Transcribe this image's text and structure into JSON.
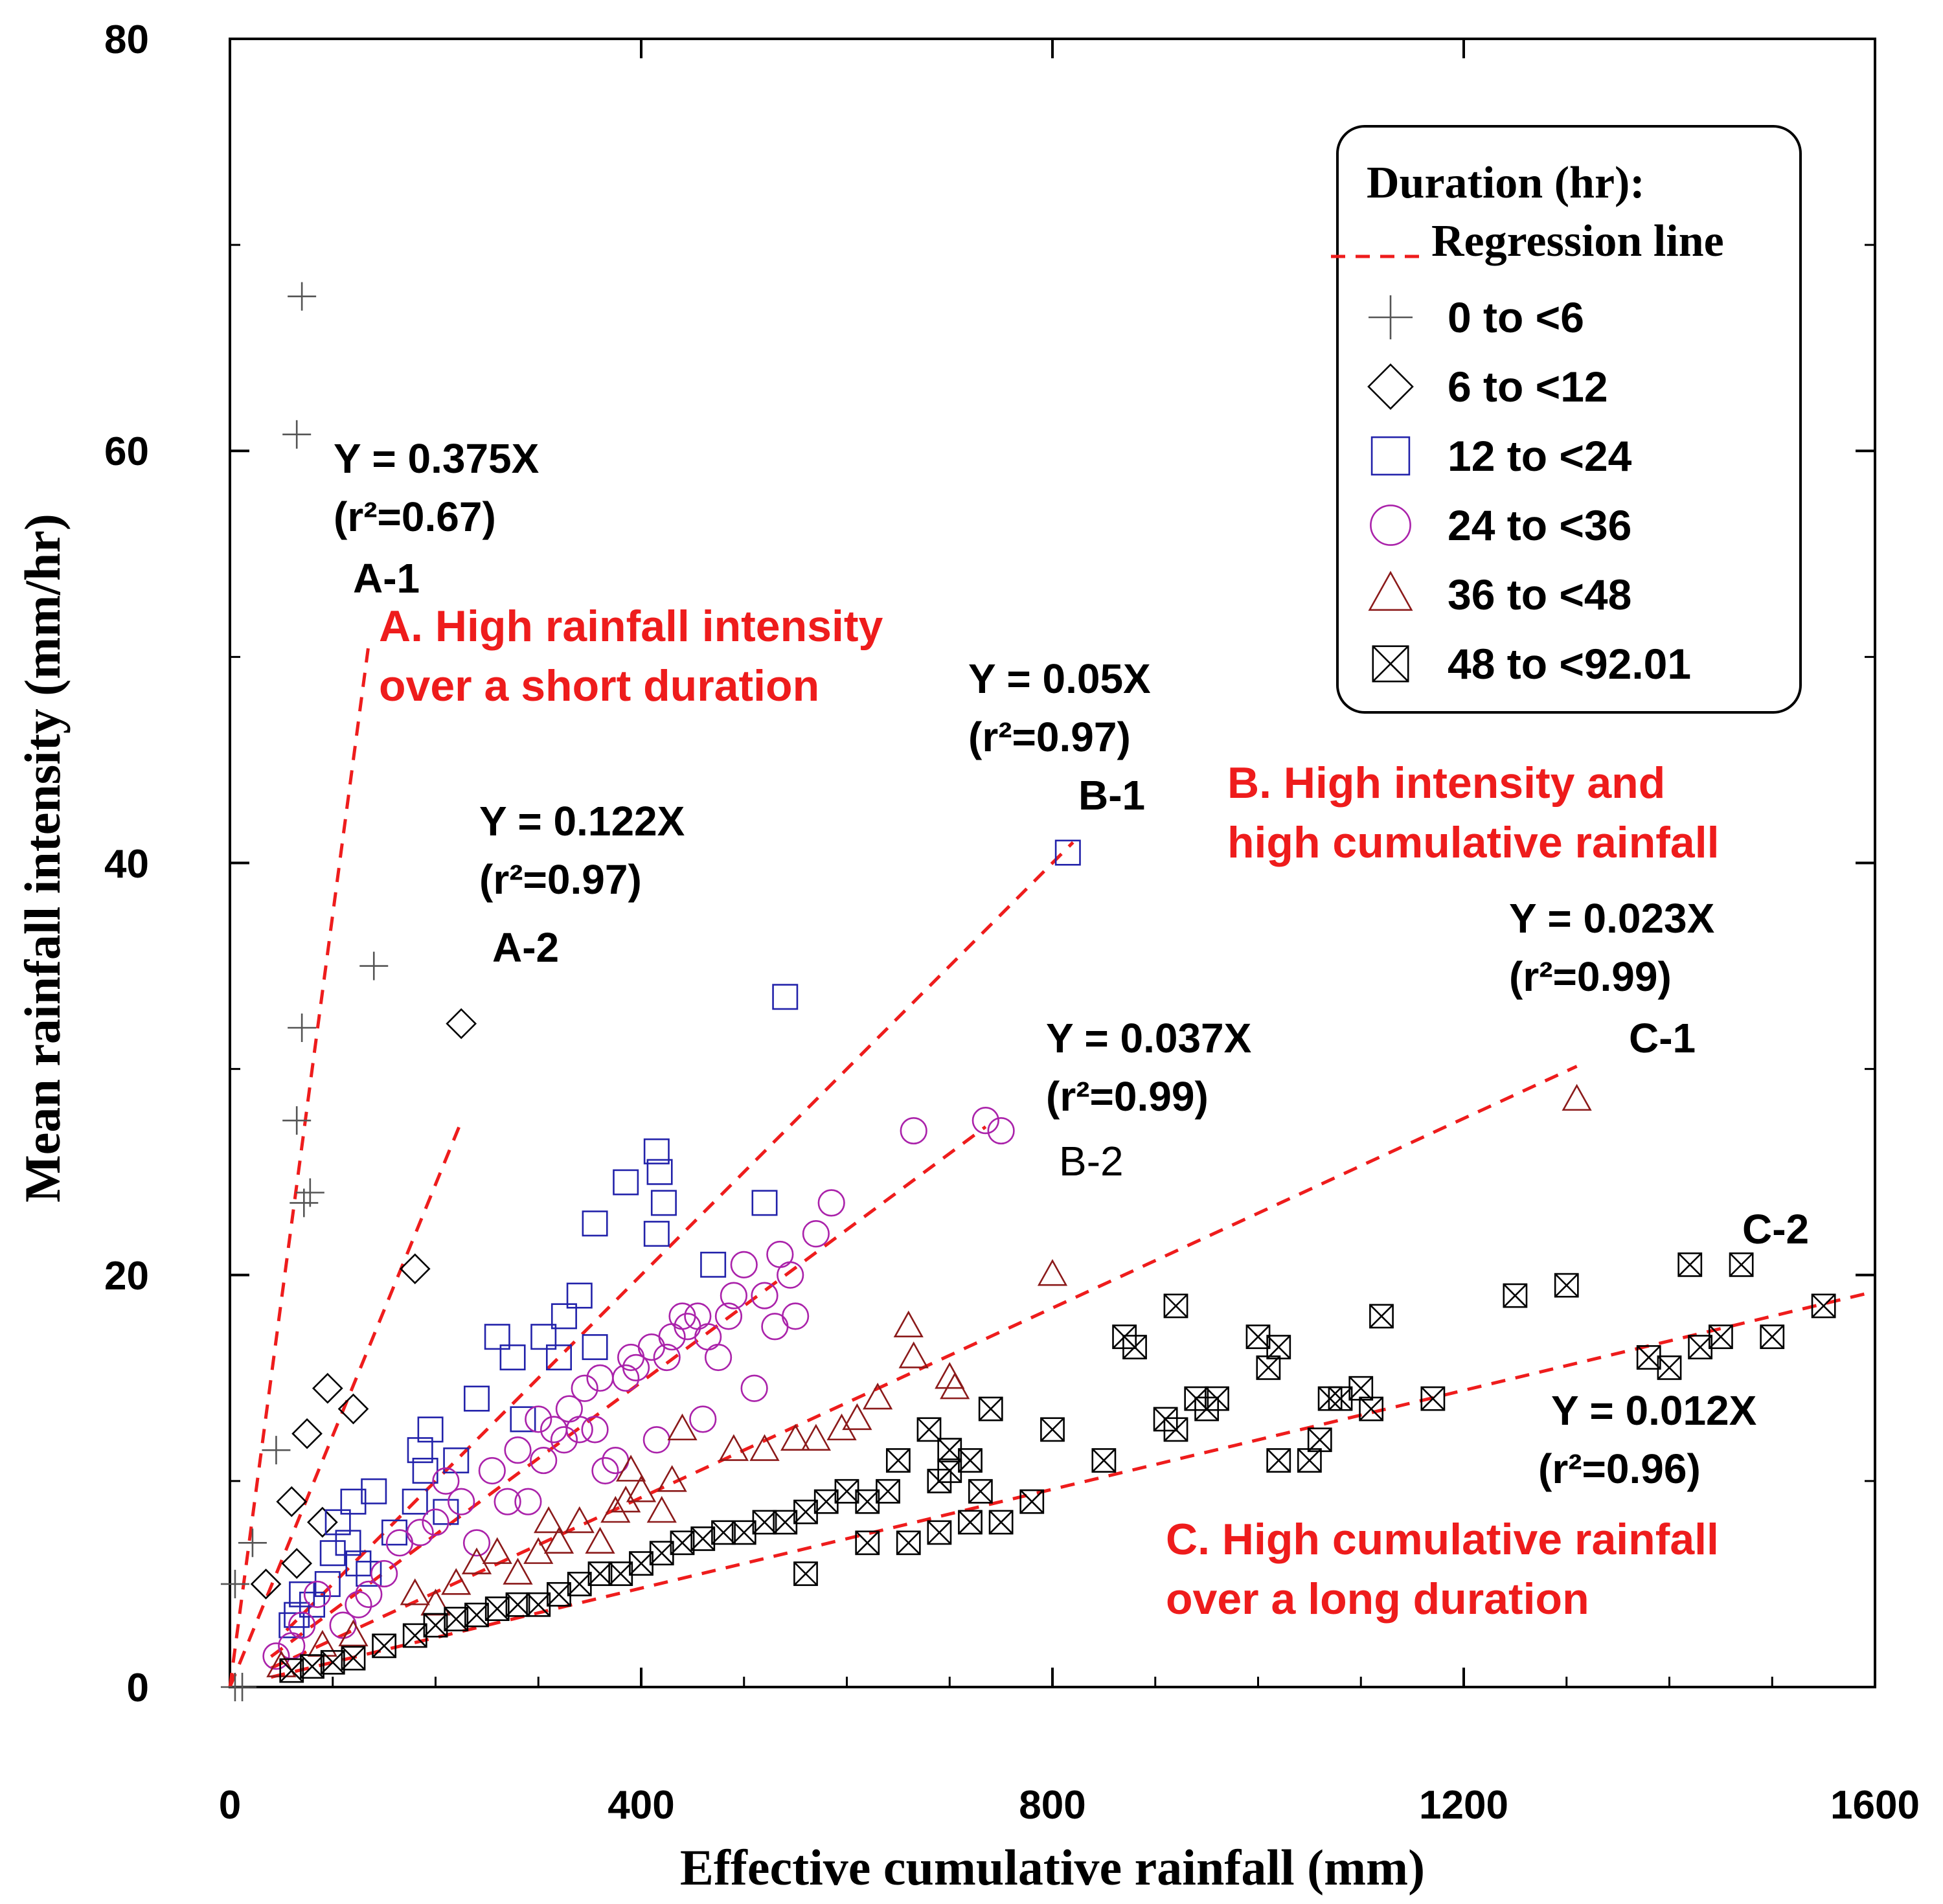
{
  "chart_data": {
    "type": "scatter",
    "xlabel": "Effective cumulative rainfall (mm)",
    "ylabel": "Mean rainfall intensity (mm/hr)",
    "xlim": [
      0,
      1600
    ],
    "ylim": [
      0,
      80
    ],
    "xticks": [
      0,
      400,
      800,
      1200,
      1600
    ],
    "yticks": [
      0,
      20,
      40,
      60,
      80
    ],
    "xtick_labels": [
      "0",
      "400",
      "800",
      "1200",
      "1600"
    ],
    "ytick_labels": [
      "0",
      "20",
      "40",
      "60",
      "80"
    ],
    "grid": false,
    "legend": {
      "placement": "top-right",
      "title": "Duration (hr):",
      "regression_label": "Regression line",
      "entries": [
        "0 to <6",
        "6 to <12",
        "12 to <24",
        "24 to <36",
        "36 to <48",
        "48 to <92.01"
      ]
    },
    "series": [
      {
        "name": "0 to <6",
        "marker": "plus",
        "color": "#555555",
        "points": [
          [
            5,
            0
          ],
          [
            12,
            0
          ],
          [
            5,
            5
          ],
          [
            22,
            7
          ],
          [
            45,
            11.5
          ],
          [
            65,
            60.8
          ],
          [
            70,
            67.5
          ],
          [
            65,
            27.5
          ],
          [
            70,
            32
          ],
          [
            72,
            23.5
          ],
          [
            78,
            24
          ],
          [
            140,
            35
          ]
        ]
      },
      {
        "name": "6 to <12",
        "marker": "diamond",
        "color": "#000000",
        "points": [
          [
            35,
            5
          ],
          [
            65,
            6
          ],
          [
            60,
            9
          ],
          [
            75,
            12.3
          ],
          [
            90,
            8
          ],
          [
            95,
            14.5
          ],
          [
            120,
            13.5
          ],
          [
            180,
            20.3
          ],
          [
            225,
            32.2
          ]
        ]
      },
      {
        "name": "12 to <24",
        "marker": "square",
        "color": "#2222aa",
        "points": [
          [
            60,
            3
          ],
          [
            65,
            3.5
          ],
          [
            70,
            4.5
          ],
          [
            80,
            4
          ],
          [
            95,
            5
          ],
          [
            100,
            6.5
          ],
          [
            105,
            8
          ],
          [
            115,
            7
          ],
          [
            120,
            9
          ],
          [
            125,
            6
          ],
          [
            135,
            5.5
          ],
          [
            140,
            9.5
          ],
          [
            160,
            7.5
          ],
          [
            180,
            9
          ],
          [
            185,
            11.5
          ],
          [
            195,
            12.5
          ],
          [
            190,
            10.5
          ],
          [
            210,
            8.5
          ],
          [
            220,
            11
          ],
          [
            240,
            14
          ],
          [
            260,
            17
          ],
          [
            275,
            16
          ],
          [
            285,
            13
          ],
          [
            305,
            17
          ],
          [
            320,
            16
          ],
          [
            325,
            18
          ],
          [
            340,
            19
          ],
          [
            355,
            22.5
          ],
          [
            355,
            16.5
          ],
          [
            385,
            24.5
          ],
          [
            415,
            26
          ],
          [
            418,
            25
          ],
          [
            422,
            23.5
          ],
          [
            415,
            22
          ],
          [
            470,
            20.5
          ],
          [
            520,
            23.5
          ],
          [
            540,
            33.5
          ],
          [
            815,
            40.5
          ]
        ]
      },
      {
        "name": "24 to <36",
        "marker": "circle",
        "color": "#aa22aa",
        "points": [
          [
            45,
            1.5
          ],
          [
            60,
            2
          ],
          [
            70,
            3
          ],
          [
            85,
            4.5
          ],
          [
            110,
            3
          ],
          [
            125,
            4
          ],
          [
            135,
            4.5
          ],
          [
            150,
            5.5
          ],
          [
            165,
            7
          ],
          [
            185,
            7.5
          ],
          [
            200,
            8
          ],
          [
            210,
            10
          ],
          [
            225,
            9
          ],
          [
            240,
            7
          ],
          [
            255,
            10.5
          ],
          [
            270,
            9
          ],
          [
            280,
            11.5
          ],
          [
            290,
            9
          ],
          [
            300,
            13
          ],
          [
            305,
            11
          ],
          [
            315,
            12.5
          ],
          [
            325,
            12
          ],
          [
            330,
            13.5
          ],
          [
            340,
            12.5
          ],
          [
            345,
            14.5
          ],
          [
            355,
            12.5
          ],
          [
            360,
            15
          ],
          [
            365,
            10.5
          ],
          [
            375,
            11
          ],
          [
            385,
            15
          ],
          [
            390,
            16
          ],
          [
            395,
            15.5
          ],
          [
            410,
            16.5
          ],
          [
            415,
            12
          ],
          [
            425,
            16
          ],
          [
            430,
            17
          ],
          [
            440,
            18
          ],
          [
            445,
            17.5
          ],
          [
            455,
            18
          ],
          [
            460,
            13
          ],
          [
            465,
            17
          ],
          [
            475,
            16
          ],
          [
            485,
            18
          ],
          [
            490,
            19
          ],
          [
            500,
            20.5
          ],
          [
            510,
            14.5
          ],
          [
            520,
            19
          ],
          [
            530,
            17.5
          ],
          [
            535,
            21
          ],
          [
            545,
            20
          ],
          [
            550,
            18
          ],
          [
            570,
            22
          ],
          [
            585,
            23.5
          ],
          [
            665,
            27
          ],
          [
            735,
            27.5
          ],
          [
            750,
            27
          ]
        ]
      },
      {
        "name": "36 to <48",
        "marker": "triangle",
        "color": "#8b1a1a",
        "points": [
          [
            50,
            1
          ],
          [
            90,
            2
          ],
          [
            120,
            2.5
          ],
          [
            180,
            4.5
          ],
          [
            200,
            4
          ],
          [
            220,
            5
          ],
          [
            240,
            6
          ],
          [
            260,
            6.5
          ],
          [
            280,
            5.5
          ],
          [
            300,
            6.5
          ],
          [
            310,
            8
          ],
          [
            320,
            7
          ],
          [
            340,
            8
          ],
          [
            360,
            7
          ],
          [
            375,
            8.5
          ],
          [
            385,
            9
          ],
          [
            390,
            10.5
          ],
          [
            400,
            9.5
          ],
          [
            420,
            8.5
          ],
          [
            430,
            10
          ],
          [
            440,
            12.5
          ],
          [
            490,
            11.5
          ],
          [
            520,
            11.5
          ],
          [
            550,
            12
          ],
          [
            570,
            12
          ],
          [
            595,
            12.5
          ],
          [
            610,
            13
          ],
          [
            630,
            14
          ],
          [
            660,
            17.5
          ],
          [
            665,
            16
          ],
          [
            700,
            15
          ],
          [
            705,
            14.5
          ],
          [
            800,
            20
          ],
          [
            1310,
            28.5
          ]
        ]
      },
      {
        "name": "48 to <92.01",
        "marker": "boxx",
        "color": "#000000",
        "points": [
          [
            60,
            0.8
          ],
          [
            80,
            1
          ],
          [
            100,
            1.2
          ],
          [
            120,
            1.4
          ],
          [
            150,
            2
          ],
          [
            180,
            2.5
          ],
          [
            200,
            3
          ],
          [
            220,
            3.3
          ],
          [
            240,
            3.5
          ],
          [
            260,
            3.8
          ],
          [
            280,
            4
          ],
          [
            300,
            4
          ],
          [
            320,
            4.5
          ],
          [
            340,
            5
          ],
          [
            360,
            5.5
          ],
          [
            380,
            5.5
          ],
          [
            400,
            6
          ],
          [
            420,
            6.5
          ],
          [
            440,
            7
          ],
          [
            460,
            7.2
          ],
          [
            480,
            7.5
          ],
          [
            500,
            7.5
          ],
          [
            520,
            8
          ],
          [
            540,
            8
          ],
          [
            560,
            8.5
          ],
          [
            580,
            9
          ],
          [
            600,
            9.5
          ],
          [
            620,
            9
          ],
          [
            640,
            9.5
          ],
          [
            560,
            5.5
          ],
          [
            620,
            7
          ],
          [
            660,
            7
          ],
          [
            690,
            7.5
          ],
          [
            720,
            8
          ],
          [
            750,
            8
          ],
          [
            780,
            9
          ],
          [
            650,
            11
          ],
          [
            680,
            12.5
          ],
          [
            700,
            11.5
          ],
          [
            720,
            11
          ],
          [
            740,
            13.5
          ],
          [
            690,
            10
          ],
          [
            700,
            10.5
          ],
          [
            730,
            9.5
          ],
          [
            800,
            12.5
          ],
          [
            850,
            11
          ],
          [
            870,
            17
          ],
          [
            880,
            16.5
          ],
          [
            920,
            18.5
          ],
          [
            910,
            13
          ],
          [
            920,
            12.5
          ],
          [
            940,
            14
          ],
          [
            950,
            13.5
          ],
          [
            960,
            14
          ],
          [
            1000,
            17
          ],
          [
            1010,
            15.5
          ],
          [
            1020,
            16.5
          ],
          [
            1050,
            11
          ],
          [
            1060,
            12
          ],
          [
            1070,
            14
          ],
          [
            1110,
            13.5
          ],
          [
            1120,
            18
          ],
          [
            1170,
            14
          ],
          [
            1250,
            19
          ],
          [
            1300,
            19.5
          ],
          [
            1380,
            16
          ],
          [
            1400,
            15.5
          ],
          [
            1420,
            20.5
          ],
          [
            1430,
            16.5
          ],
          [
            1450,
            17
          ],
          [
            1470,
            20.5
          ],
          [
            1500,
            17
          ],
          [
            1550,
            18.5
          ],
          [
            1020,
            11
          ],
          [
            1080,
            14
          ],
          [
            1100,
            14.5
          ]
        ]
      }
    ],
    "regression_lines": [
      {
        "label": "A-1",
        "equation": "Y = 0.375X",
        "r2": "(r²=0.67)",
        "x_range": [
          0,
          135
        ]
      },
      {
        "label": "A-2",
        "equation": "Y = 0.122X",
        "r2": "(r²=0.97)",
        "x_range": [
          0,
          225
        ]
      },
      {
        "label": "B-1",
        "equation": "Y = 0.05X",
        "r2": "(r²=0.97)",
        "x_range": [
          55,
          820
        ]
      },
      {
        "label": "B-2",
        "equation": "Y = 0.037X",
        "r2": "(r²=0.99)",
        "x_range": [
          40,
          735
        ]
      },
      {
        "label": "C-1",
        "equation": "Y = 0.023X",
        "r2": "(r²=0.99)",
        "x_range": [
          40,
          1310
        ]
      },
      {
        "label": "C-2",
        "equation": "Y = 0.012X",
        "r2": "(r²=0.96)",
        "x_range": [
          40,
          1590
        ]
      }
    ],
    "annotations": {
      "eq_a1": "Y = 0.375X",
      "r2_a1": "(r²=0.67)",
      "label_a1": "A-1",
      "eq_a2": "Y = 0.122X",
      "r2_a2": "(r²=0.97)",
      "label_a2": "A-2",
      "eq_b1": "Y = 0.05X",
      "r2_b1": "(r²=0.97)",
      "label_b1": "B-1",
      "eq_b2": "Y = 0.037X",
      "r2_b2": "(r²=0.99)",
      "label_b2": "B-2",
      "eq_c1": "Y = 0.023X",
      "r2_c1": "(r²=0.99)",
      "label_c1": "C-1",
      "eq_c2": "Y = 0.012X",
      "r2_c2": "(r²=0.96)",
      "label_c2": "C-2",
      "region_a_line1": "A. High rainfall intensity",
      "region_a_line2": "over a short duration",
      "region_b_line1": "B. High intensity and",
      "region_b_line2": "high cumulative rainfall",
      "region_c_line1": "C. High cumulative rainfall",
      "region_c_line2": "over a long duration"
    },
    "colors": {
      "regression": "#ee1c1c",
      "region_text": "#ee1c1c",
      "axis": "#000000"
    }
  }
}
